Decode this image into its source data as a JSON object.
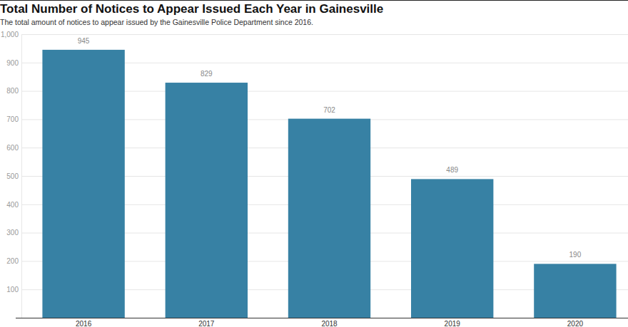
{
  "chart_data": {
    "type": "bar",
    "title": "Total Number of Notices to Appear Issued Each Year in Gainesville",
    "subtitle": "The total amount of notices to appear issued by the Gainesville Police Department since 2016.",
    "categories": [
      "2016",
      "2017",
      "2018",
      "2019",
      "2020"
    ],
    "values": [
      945,
      829,
      702,
      489,
      190
    ],
    "color": "#3781a4",
    "ylim": [
      0,
      1000
    ],
    "yticks": [
      100,
      200,
      300,
      400,
      500,
      600,
      700,
      800,
      900,
      {
        "value": 1000,
        "label": "1,000"
      }
    ],
    "grid": true,
    "data_labels": true
  }
}
